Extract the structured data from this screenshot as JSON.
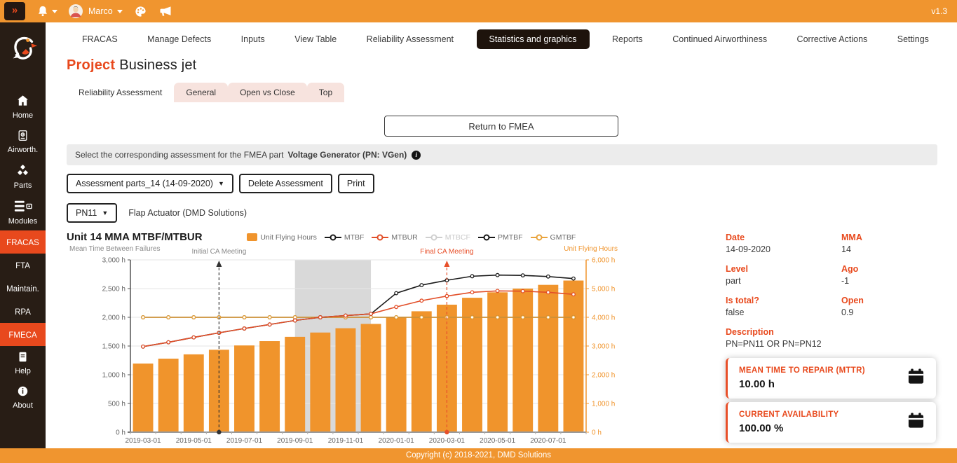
{
  "topbar": {
    "toggle_icon": "»",
    "icons": [
      "expand-icon",
      "bell-icon",
      "avatar",
      "palette-icon",
      "megaphone-icon"
    ],
    "user_name": "Marco",
    "version": "v1.3"
  },
  "sidebar": {
    "items": [
      {
        "label": "Home",
        "icon": "home-icon"
      },
      {
        "label": "Airworth.",
        "icon": "passport-icon"
      },
      {
        "label": "Parts",
        "icon": "parts-icon"
      },
      {
        "label": "Modules",
        "icon": "modules-icon"
      },
      {
        "label": "FRACAS",
        "active": true
      },
      {
        "label": "FTA"
      },
      {
        "label": "Maintain."
      },
      {
        "label": "RPA"
      },
      {
        "label": "FMECA",
        "active": true
      },
      {
        "label": "Help",
        "icon": "help-icon"
      },
      {
        "label": "About",
        "icon": "info-icon"
      }
    ]
  },
  "nav": {
    "items": [
      {
        "label": "FRACAS",
        "active": false
      },
      {
        "label": "Manage Defects",
        "active": false
      },
      {
        "label": "Inputs",
        "active": false
      },
      {
        "label": "View Table",
        "active": false
      },
      {
        "label": "Reliability Assessment",
        "active": false
      },
      {
        "label": "Statistics and graphics",
        "active": true
      },
      {
        "label": "Reports",
        "active": false
      },
      {
        "label": "Continued Airworthiness",
        "active": false
      },
      {
        "label": "Corrective Actions",
        "active": false
      },
      {
        "label": "Settings",
        "active": false
      }
    ]
  },
  "page": {
    "title_prefix": "Project",
    "title": "Business jet"
  },
  "tabs": {
    "items": [
      {
        "label": "Reliability Assessment",
        "active": true
      },
      {
        "label": "General",
        "active": false
      },
      {
        "label": "Open vs Close",
        "active": false
      },
      {
        "label": "Top",
        "active": false
      }
    ]
  },
  "return_button": {
    "label": "Return to FMEA"
  },
  "alert": {
    "prefix": "Select the corresponding assessment for the FMEA part",
    "part": "Voltage Generator (PN: VGen)"
  },
  "toolbar": {
    "assessment_select": "Assessment parts_14 (14-09-2020)",
    "delete_label": "Delete Assessment",
    "print_label": "Print"
  },
  "part_row": {
    "pn_select": "PN11",
    "part_name": "Flap Actuator (DMD Solutions)"
  },
  "details": {
    "fields": [
      {
        "label": "Date",
        "value": "14-09-2020"
      },
      {
        "label": "MMA",
        "value": "14"
      },
      {
        "label": "Level",
        "value": "part"
      },
      {
        "label": "Ago",
        "value": "-1"
      },
      {
        "label": "Is total?",
        "value": "false"
      },
      {
        "label": "Open",
        "value": "0.9"
      }
    ],
    "description_label": "Description",
    "description_value": "PN=PN11 OR PN=PN12"
  },
  "cards": [
    {
      "title": "MEAN TIME TO REPAIR (MTTR)",
      "value": "10.00 h",
      "icon": "calendar-icon"
    },
    {
      "title": "CURRENT AVAILABILITY",
      "value": "100.00 %",
      "icon": "calendar-icon"
    }
  ],
  "footer": {
    "copyright": "Copyright (c) 2018-2021, DMD Solutions"
  },
  "chart_data": {
    "type": "bar",
    "title": "Unit 14 MMA MTBF/MTBUR",
    "left_axis": {
      "label": "Mean Time Between Failures",
      "min": 0,
      "max": 3000,
      "step": 500,
      "suffix": " h"
    },
    "right_axis": {
      "label": "Unit Flying Hours",
      "min": 0,
      "max": 6000,
      "step": 1000,
      "suffix": " h",
      "color": "#f0942c"
    },
    "x": [
      "2019-03",
      "2019-04",
      "2019-05",
      "2019-06",
      "2019-07",
      "2019-08",
      "2019-09",
      "2019-10",
      "2019-11",
      "2019-12",
      "2020-01",
      "2020-02",
      "2020-03",
      "2020-04",
      "2020-05",
      "2020-06",
      "2020-07",
      "2020-08"
    ],
    "x_tick_labels": [
      "2019-03-01",
      "2019-05-01",
      "2019-07-01",
      "2019-09-01",
      "2019-11-01",
      "2020-01-01",
      "2020-03-01",
      "2020-05-01",
      "2020-07-01"
    ],
    "series": [
      {
        "name": "Unit Flying Hours",
        "type": "bar",
        "axis": "right",
        "color": "#f0942c",
        "z": 0,
        "values": [
          2390,
          2560,
          2710,
          2870,
          3020,
          3170,
          3320,
          3470,
          3620,
          3770,
          4000,
          4210,
          4440,
          4680,
          4870,
          5000,
          5130,
          5280
        ]
      },
      {
        "name": "MTBF",
        "type": "line",
        "axis": "left",
        "color": "#1a1a1a",
        "z": 3,
        "values": [
          1490,
          1565,
          1650,
          1730,
          1805,
          1875,
          1945,
          2000,
          2030,
          2060,
          2420,
          2560,
          2645,
          2715,
          2735,
          2730,
          2710,
          2675
        ]
      },
      {
        "name": "MTBUR",
        "type": "line",
        "axis": "left",
        "color": "#e24e28",
        "z": 4,
        "values": [
          1490,
          1565,
          1650,
          1730,
          1805,
          1875,
          1945,
          2000,
          2030,
          2060,
          2180,
          2290,
          2370,
          2435,
          2460,
          2455,
          2435,
          2400
        ]
      },
      {
        "name": "MTBCF",
        "type": "line",
        "axis": "left",
        "color": "#cccccc",
        "disabled": true,
        "z": 1,
        "values": []
      },
      {
        "name": "PMTBF",
        "type": "line",
        "axis": "left",
        "color": "#1a1a1a",
        "z": 1,
        "values": [
          2000,
          2000,
          2000,
          2000,
          2000,
          2000,
          2000,
          2000,
          2000,
          2000,
          2000,
          2000,
          2000,
          2000,
          2000,
          2000,
          2000,
          2000
        ]
      },
      {
        "name": "GMTBF",
        "type": "line",
        "axis": "left",
        "color": "#e9a43c",
        "z": 2,
        "values": [
          2000,
          2000,
          2000,
          2000,
          2000,
          2000,
          2000,
          2000,
          2000,
          2000,
          2000,
          2000,
          2000,
          2000,
          2000,
          2000,
          2000,
          2000
        ]
      }
    ],
    "annotations": [
      {
        "label": "Initial CA Meeting",
        "month": "2019-06",
        "line_color": "#333333",
        "label_color": "#8a8a8a"
      },
      {
        "label": "Final CA Meeting",
        "month": "2020-03",
        "line_color": "#e8502a",
        "label_color": "#e8502a"
      }
    ],
    "shaded_region": {
      "from_month": "2019-09",
      "to_month": "2019-12",
      "color": "#d9d9d9"
    },
    "legend_position": "top-center",
    "grid": true
  }
}
